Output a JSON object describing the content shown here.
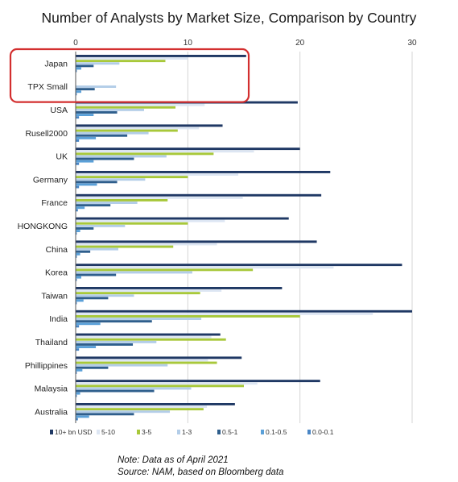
{
  "chart_data": {
    "type": "bar",
    "orientation": "horizontal",
    "title": "Number of Analysts by Market Size, Comparison by Country",
    "xlabel": "",
    "ylabel": "",
    "xlim": [
      0,
      30
    ],
    "x_ticks": [
      0,
      10,
      20,
      30
    ],
    "x_axis_position": "top",
    "grid": true,
    "legend_position": "bottom",
    "categories": [
      "Japan",
      "TPX Small",
      "USA",
      "Rusell2000",
      "UK",
      "Germany",
      "France",
      "HONGKONG",
      "China",
      "Korea",
      "Taiwan",
      "India",
      "Thailand",
      "Phillippines",
      "Malaysia",
      "Australia"
    ],
    "highlighted_categories": [
      "Japan",
      "TPX Small"
    ],
    "highlight_color": "#d32f2f",
    "series": [
      {
        "name": "10+ bn USD",
        "color": "#1f3864",
        "values": [
          15.2,
          null,
          19.8,
          13.1,
          20.0,
          22.7,
          21.9,
          19.0,
          21.5,
          29.1,
          18.4,
          30.0,
          12.9,
          14.8,
          21.8,
          14.2
        ]
      },
      {
        "name": "5-10",
        "color": "#dde6f3",
        "values": [
          10.0,
          null,
          11.5,
          11.0,
          15.9,
          14.5,
          14.9,
          13.3,
          12.6,
          23.0,
          13.0,
          26.5,
          12.1,
          11.8,
          16.2,
          11.7
        ]
      },
      {
        "name": "3-5",
        "color": "#a8c83a",
        "values": [
          8.0,
          null,
          8.9,
          9.1,
          12.3,
          10.0,
          8.2,
          10.0,
          8.7,
          15.8,
          11.1,
          20.0,
          13.4,
          12.6,
          15.0,
          11.4
        ]
      },
      {
        "name": "1-3",
        "color": "#b3cde8",
        "values": [
          3.9,
          3.6,
          6.1,
          6.5,
          8.1,
          6.2,
          5.5,
          4.4,
          3.8,
          10.4,
          5.2,
          11.2,
          7.2,
          8.2,
          10.3,
          8.4
        ]
      },
      {
        "name": "0.5-1",
        "color": "#2e5e8c",
        "values": [
          1.6,
          1.7,
          3.7,
          4.6,
          5.2,
          3.7,
          3.1,
          1.6,
          1.3,
          3.6,
          2.9,
          6.8,
          5.1,
          2.9,
          7.0,
          5.2
        ]
      },
      {
        "name": "0.1-0.5",
        "color": "#5aa0d8",
        "values": [
          0.5,
          0.5,
          1.6,
          1.8,
          1.6,
          1.9,
          0.8,
          0.4,
          0.4,
          0.5,
          0.7,
          2.2,
          1.8,
          0.6,
          0.4,
          1.2
        ]
      },
      {
        "name": "0.0-0.1",
        "color": "#4a86c5",
        "values": [
          0.1,
          0.1,
          0.3,
          0.3,
          0.3,
          0.3,
          0.2,
          0.1,
          0.1,
          0.1,
          0.1,
          0.3,
          0.3,
          0.1,
          0.1,
          0.2
        ]
      }
    ],
    "notes": [
      "Note: Data as of April 2021",
      "Source: NAM, based on Bloomberg data"
    ]
  }
}
